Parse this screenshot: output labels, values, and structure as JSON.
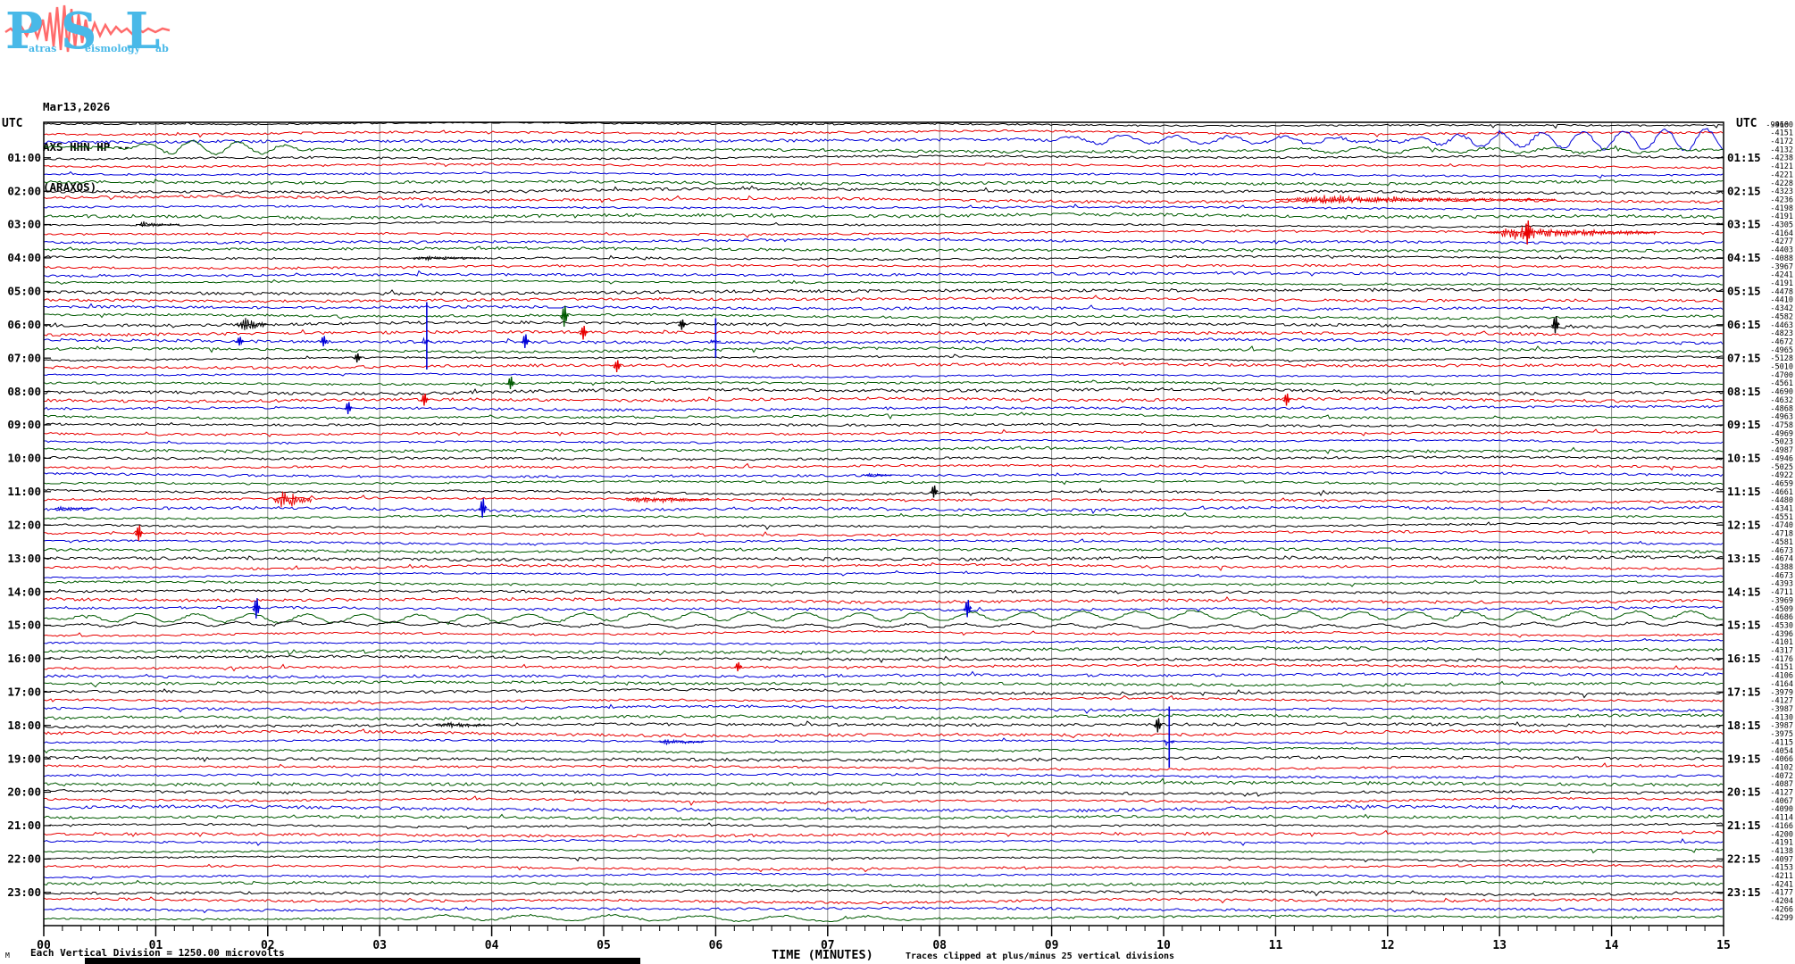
{
  "logo": {
    "letters": [
      "P",
      "S",
      "L"
    ],
    "words": [
      "atras",
      "eismology",
      "ab"
    ]
  },
  "header": {
    "date": "Mar13,2026",
    "channel": "AXS HHN HP --",
    "station": "(ARAXOS)"
  },
  "corner_labels": {
    "utc_left": "UTC",
    "utc_right": "UTC"
  },
  "footer": {
    "watermark": "M",
    "scale_note": "Each Vertical Division = 1250.00 microvolts",
    "xlabel": "TIME (MINUTES)",
    "clip_note": "Traces clipped at plus/minus 25 vertical divisions"
  },
  "chart_data": {
    "type": "line",
    "subtype": "helicorder_seismogram",
    "date": "Mar13,2026",
    "channel": "AXS HHN HP --",
    "station": "(ARAXOS)",
    "x_axis": {
      "label": "TIME (MINUTES)",
      "range": [
        0,
        15
      ],
      "tick_labels": [
        "00",
        "01",
        "02",
        "03",
        "04",
        "05",
        "06",
        "07",
        "08",
        "09",
        "10",
        "11",
        "12",
        "13",
        "14",
        "15"
      ]
    },
    "rows_per_hour": 4,
    "minutes_per_row": 15,
    "total_rows": 96,
    "trace_color_cycle": [
      "#000000",
      "#e80000",
      "#0000d8",
      "#005a00"
    ],
    "grid_color": "#8a8a8a",
    "left_time_labels": [
      "01:00",
      "02:00",
      "03:00",
      "04:00",
      "05:00",
      "06:00",
      "07:00",
      "08:00",
      "09:00",
      "10:00",
      "11:00",
      "12:00",
      "13:00",
      "14:00",
      "15:00",
      "16:00",
      "17:00",
      "18:00",
      "19:00",
      "20:00",
      "21:00",
      "22:00",
      "23:00"
    ],
    "right_time_labels": [
      "01:15",
      "02:15",
      "03:15",
      "04:15",
      "05:15",
      "06:15",
      "07:15",
      "08:15",
      "09:15",
      "10:15",
      "11:15",
      "12:15",
      "13:15",
      "14:15",
      "15:15",
      "16:15",
      "17:15",
      "18:15",
      "19:15",
      "20:15",
      "21:15",
      "22:15",
      "23:15"
    ],
    "right_column_values": [
      -4160,
      -4151,
      -4172,
      -4132,
      -4238,
      -4121,
      -4221,
      -4228,
      -4323,
      -4236,
      -4198,
      -4191,
      -4305,
      -4164,
      -4277,
      -4403,
      -4088,
      -3967,
      -4241,
      -4191,
      -4478,
      -4410,
      -4342,
      -4582,
      -4463,
      -4823,
      -4672,
      -4965,
      -5128,
      -5010,
      -4700,
      -4561,
      -4690,
      -4632,
      -4868,
      -4963,
      -4758,
      -4969,
      -5023,
      -4987,
      -4946,
      -5025,
      -4922,
      -4659,
      -4661,
      -4480,
      -4341,
      -4551,
      -4740,
      -4718,
      -4581,
      -4673,
      -4674,
      -4388,
      -4673,
      -4393,
      -4711,
      -3969,
      -4509,
      -4686,
      -4530,
      -4396,
      -4101,
      -4317,
      -4176,
      -4151,
      -4106,
      -4164,
      -3979,
      -4127,
      -3987,
      -4130,
      -3987,
      -3975,
      -4115,
      -4054,
      -4066,
      -4102,
      -4072,
      -4087,
      -4127,
      -4067,
      -4090,
      -4114,
      -4166,
      -4200,
      -4191,
      -4138,
      -4097,
      -4153,
      -4211,
      -4241,
      -4177,
      -4204,
      -4266,
      -4299
    ],
    "right_column_overlap_value": "-9960",
    "events": [
      {
        "row": 2,
        "type": "wave",
        "start": 8.8,
        "end": 12.0,
        "amp": 4,
        "period": 60
      },
      {
        "row": 2,
        "type": "wave",
        "start": 12.0,
        "end": 15.0,
        "amp": 13,
        "period": 46,
        "grow": true
      },
      {
        "row": 3,
        "type": "wave",
        "start": 0.6,
        "end": 2.4,
        "amp": 7,
        "period": 52
      },
      {
        "row": 3,
        "type": "wave",
        "start": 10.8,
        "end": 14.8,
        "amp": 2.5,
        "period": 70
      },
      {
        "row": 9,
        "type": "burst",
        "start": 11.0,
        "dur": 2.5,
        "amp": 5
      },
      {
        "row": 12,
        "type": "burst",
        "start": 0.82,
        "dur": 0.4,
        "amp": 3
      },
      {
        "row": 13,
        "type": "burst",
        "start": 12.9,
        "dur": 1.5,
        "amp": 9
      },
      {
        "row": 13,
        "type": "spike",
        "at": 13.25,
        "amp": 14
      },
      {
        "row": 16,
        "type": "burst",
        "start": 3.3,
        "dur": 0.6,
        "amp": 2.5
      },
      {
        "row": 23,
        "type": "spike",
        "at": 4.65,
        "amp": 12
      },
      {
        "row": 24,
        "type": "burst",
        "start": 1.72,
        "dur": 0.3,
        "amp": 11
      },
      {
        "row": 24,
        "type": "spike",
        "at": 5.7,
        "amp": 6
      },
      {
        "row": 24,
        "type": "spike",
        "at": 13.5,
        "amp": 10
      },
      {
        "row": 25,
        "type": "spike",
        "at": 4.82,
        "amp": 8
      },
      {
        "row": 26,
        "type": "spike",
        "at": 1.75,
        "amp": 5
      },
      {
        "row": 26,
        "type": "spike",
        "at": 2.5,
        "amp": 6
      },
      {
        "row": 26,
        "type": "bigspike",
        "at": 3.42,
        "amp": 44
      },
      {
        "row": 26,
        "type": "spike",
        "at": 4.3,
        "amp": 8
      },
      {
        "row": 26,
        "type": "bigspike",
        "at": 6.0,
        "amp": 26
      },
      {
        "row": 28,
        "type": "spike",
        "at": 2.8,
        "amp": 5
      },
      {
        "row": 29,
        "type": "spike",
        "at": 5.12,
        "amp": 7
      },
      {
        "row": 31,
        "type": "spike",
        "at": 4.17,
        "amp": 7
      },
      {
        "row": 33,
        "type": "spike",
        "at": 3.4,
        "amp": 7
      },
      {
        "row": 33,
        "type": "spike",
        "at": 11.1,
        "amp": 7
      },
      {
        "row": 34,
        "type": "spike",
        "at": 2.72,
        "amp": 7
      },
      {
        "row": 42,
        "type": "burst",
        "start": 7.3,
        "dur": 0.3,
        "amp": 2
      },
      {
        "row": 44,
        "type": "spike",
        "at": 7.95,
        "amp": 7
      },
      {
        "row": 45,
        "type": "burst",
        "start": 2.05,
        "dur": 0.35,
        "amp": 12
      },
      {
        "row": 45,
        "type": "burst",
        "start": 5.2,
        "dur": 0.75,
        "amp": 5
      },
      {
        "row": 46,
        "type": "burst",
        "start": 0.1,
        "dur": 0.35,
        "amp": 3
      },
      {
        "row": 46,
        "type": "spike",
        "at": 3.92,
        "amp": 11
      },
      {
        "row": 49,
        "type": "spike",
        "at": 0.85,
        "amp": 9
      },
      {
        "row": 58,
        "type": "spike",
        "at": 1.9,
        "amp": 12
      },
      {
        "row": 58,
        "type": "spike",
        "at": 8.25,
        "amp": 10
      },
      {
        "row": 59,
        "type": "wave",
        "start": 0,
        "end": 15,
        "amp": 4.5,
        "period": 62
      },
      {
        "row": 60,
        "type": "wave",
        "start": 0,
        "end": 15,
        "amp": 2,
        "period": 58
      },
      {
        "row": 65,
        "type": "spike",
        "at": 6.2,
        "amp": 5
      },
      {
        "row": 72,
        "type": "burst",
        "start": 3.5,
        "dur": 0.5,
        "amp": 4
      },
      {
        "row": 72,
        "type": "spike",
        "at": 9.95,
        "amp": 8
      },
      {
        "row": 74,
        "type": "burst",
        "start": 5.5,
        "dur": 0.4,
        "amp": 4
      },
      {
        "row": 74,
        "type": "bigspike",
        "at": 10.05,
        "amp": 40
      },
      {
        "row": 95,
        "type": "wave",
        "start": 3,
        "end": 8,
        "amp": 3,
        "period": 95
      }
    ]
  }
}
